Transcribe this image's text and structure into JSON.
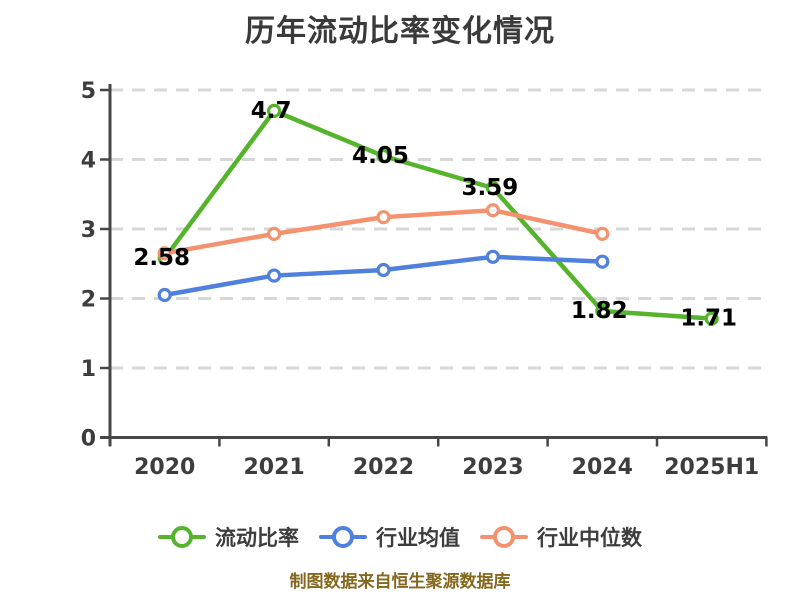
{
  "title": "历年流动比率变化情况",
  "footer": "制图数据来自恒生聚源数据库",
  "colors": {
    "background": "#ffffff",
    "title_text": "#3a3a3a",
    "axis": "#474747",
    "grid": "#d7d7d7",
    "tick_label": "#3d3d3d",
    "point_label": "#000000",
    "legend_label": "#3d3d3d",
    "footer_text": "#85681e",
    "series_current_ratio": "#55b42c",
    "series_industry_mean": "#4f80dd",
    "series_industry_median": "#f4916e",
    "marker_fill": "#ffffff"
  },
  "chart_data": {
    "type": "line",
    "title": "历年流动比率变化情况",
    "categories": [
      "2020",
      "2021",
      "2022",
      "2023",
      "2024",
      "2025H1"
    ],
    "series": [
      {
        "name": "流动比率",
        "color": "#55b42c",
        "values": [
          2.58,
          4.7,
          4.05,
          3.59,
          1.82,
          1.71
        ],
        "point_labels": [
          "2.58",
          "4.7",
          "4.05",
          "3.59",
          "1.82",
          "1.71"
        ],
        "labeled": true
      },
      {
        "name": "行业均值",
        "color": "#4f80dd",
        "values": [
          2.05,
          2.33,
          2.41,
          2.6,
          2.53,
          null
        ],
        "labeled": false
      },
      {
        "name": "行业中位数",
        "color": "#f4916e",
        "values": [
          2.65,
          2.93,
          3.17,
          3.27,
          2.93,
          null
        ],
        "labeled": false
      }
    ],
    "xlabel": "",
    "ylabel": "",
    "ylim": [
      0,
      5
    ],
    "yticks": [
      0,
      1,
      2,
      3,
      4,
      5
    ],
    "grid": "dashed-horizontal",
    "legend_position": "bottom",
    "legend_entries": [
      "流动比率",
      "行业均值",
      "行业中位数"
    ]
  }
}
